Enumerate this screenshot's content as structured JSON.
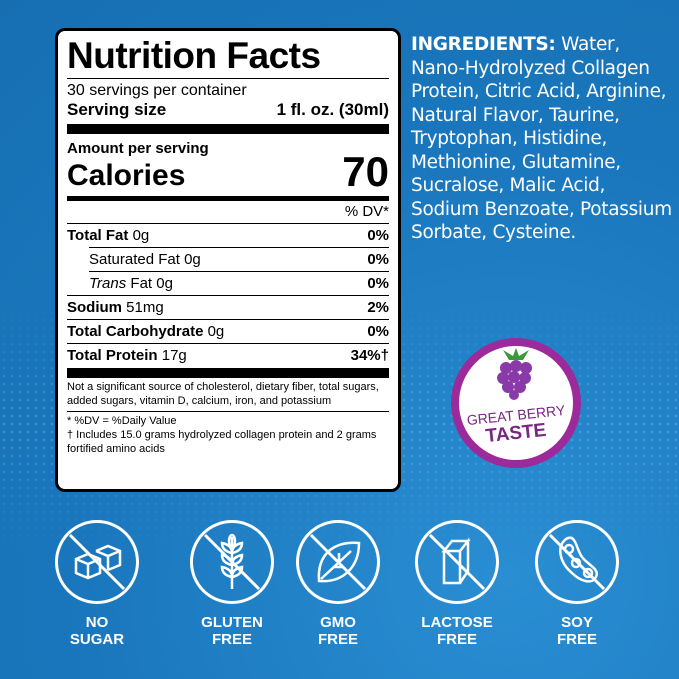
{
  "nutrition": {
    "title": "Nutrition Facts",
    "servings": "30 servings per container",
    "serving_size_label": "Serving size",
    "serving_size_value": "1 fl. oz. (30ml)",
    "amount_per_serving": "Amount per serving",
    "calories_label": "Calories",
    "calories_value": "70",
    "dv_header": "% DV*",
    "rows": [
      {
        "name": "Total Fat",
        "amount": "0g",
        "dv": "0%"
      },
      {
        "name": "Saturated Fat",
        "amount": "0g",
        "dv": "0%"
      },
      {
        "name": "Trans",
        "name_suffix": "Fat",
        "amount": "0g",
        "dv": "0%"
      },
      {
        "name": "Sodium",
        "amount": "51mg",
        "dv": "2%"
      },
      {
        "name": "Total Carbohydrate",
        "amount": "0g",
        "dv": "0%"
      },
      {
        "name": "Total Protein",
        "amount": "17g",
        "dv": "34%†"
      }
    ],
    "note": "Not a significant source of cholesterol, dietary fiber, total sugars, added sugars, vitamin D, calcium, iron, and potassium",
    "footnote1": "* %DV = %Daily Value",
    "footnote2": "† Includes 15.0 grams hydrolyzed collagen protein and 2 grams fortified amino acids"
  },
  "ingredients": {
    "label": "INGREDIENTS:",
    "text": "Water, Nano-Hydrolyzed Collagen Protein, Citric Acid, Arginine, Natural Flavor, Taurine, Tryptophan, Histidine, Methionine, Glutamine, Sucralose, Malic Acid, Sodium Benzoate, Potassium Sorbate, Cysteine."
  },
  "badge": {
    "line1": "GREAT BERRY",
    "line2": "TASTE",
    "color": "#9c2a9a"
  },
  "claims": [
    {
      "icon": "sugar-cubes-icon",
      "line1": "NO",
      "line2": "SUGAR"
    },
    {
      "icon": "wheat-icon",
      "line1": "GLUTEN",
      "line2": "FREE"
    },
    {
      "icon": "leaf-icon",
      "line1": "GMO",
      "line2": "FREE"
    },
    {
      "icon": "milk-carton-icon",
      "line1": "LACTOSE",
      "line2": "FREE"
    },
    {
      "icon": "soybean-icon",
      "line1": "SOY",
      "line2": "FREE"
    }
  ],
  "colors": {
    "background": "#1d7cc2",
    "text": "#ffffff"
  }
}
